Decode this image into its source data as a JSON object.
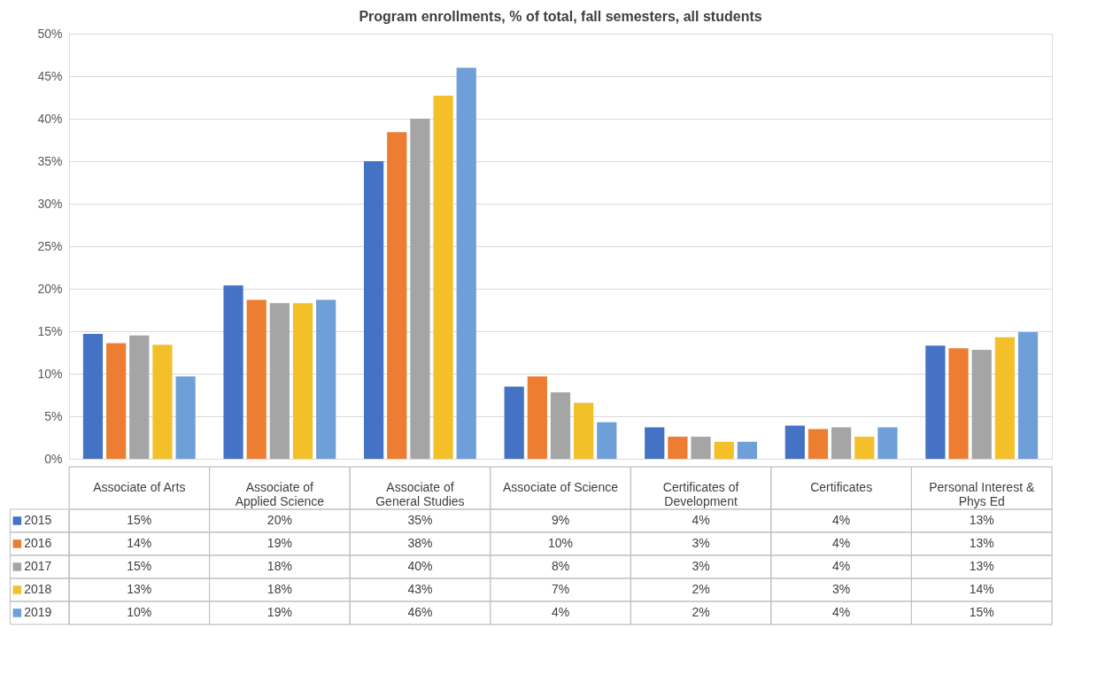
{
  "chart_data": {
    "type": "bar",
    "title": "Program enrollments, % of total, fall semesters, all students",
    "categories": [
      "Associate of Arts",
      "Associate of Applied Science",
      "Associate of General Studies",
      "Associate of Science",
      "Certificates of Development",
      "Certificates",
      "Personal Interest & Phys Ed"
    ],
    "series": [
      {
        "name": "2015",
        "color": "#4472c4",
        "values": [
          14.7,
          20.4,
          35.0,
          8.5,
          3.7,
          3.9,
          13.3
        ],
        "value_labels": [
          "15%",
          "20%",
          "35%",
          "9%",
          "4%",
          "4%",
          "13%"
        ]
      },
      {
        "name": "2016",
        "color": "#ed7d31",
        "values": [
          13.6,
          18.7,
          38.4,
          9.7,
          2.6,
          3.5,
          13.0
        ],
        "value_labels": [
          "14%",
          "19%",
          "38%",
          "10%",
          "3%",
          "4%",
          "13%"
        ]
      },
      {
        "name": "2017",
        "color": "#a5a5a5",
        "values": [
          14.5,
          18.3,
          40.0,
          7.8,
          2.6,
          3.7,
          12.8
        ],
        "value_labels": [
          "15%",
          "18%",
          "40%",
          "8%",
          "3%",
          "4%",
          "13%"
        ]
      },
      {
        "name": "2018",
        "color": "#f4c02a",
        "values": [
          13.4,
          18.3,
          42.7,
          6.6,
          2.0,
          2.6,
          14.3
        ],
        "value_labels": [
          "13%",
          "18%",
          "43%",
          "7%",
          "2%",
          "3%",
          "14%"
        ]
      },
      {
        "name": "2019",
        "color": "#6f9fd8",
        "values": [
          9.7,
          18.7,
          46.0,
          4.3,
          2.0,
          3.7,
          14.9
        ],
        "value_labels": [
          "10%",
          "19%",
          "46%",
          "4%",
          "2%",
          "4%",
          "15%"
        ]
      }
    ],
    "ylim": [
      0,
      50
    ],
    "yticks": [
      {
        "value": 0,
        "label": "0%"
      },
      {
        "value": 5,
        "label": "5%"
      },
      {
        "value": 10,
        "label": "10%"
      },
      {
        "value": 15,
        "label": "15%"
      },
      {
        "value": 20,
        "label": "20%"
      },
      {
        "value": 25,
        "label": "25%"
      },
      {
        "value": 30,
        "label": "30%"
      },
      {
        "value": 35,
        "label": "35%"
      },
      {
        "value": 40,
        "label": "40%"
      },
      {
        "value": 45,
        "label": "45%"
      },
      {
        "value": 50,
        "label": "50%"
      }
    ],
    "grid": "y",
    "legend": "bottom"
  }
}
